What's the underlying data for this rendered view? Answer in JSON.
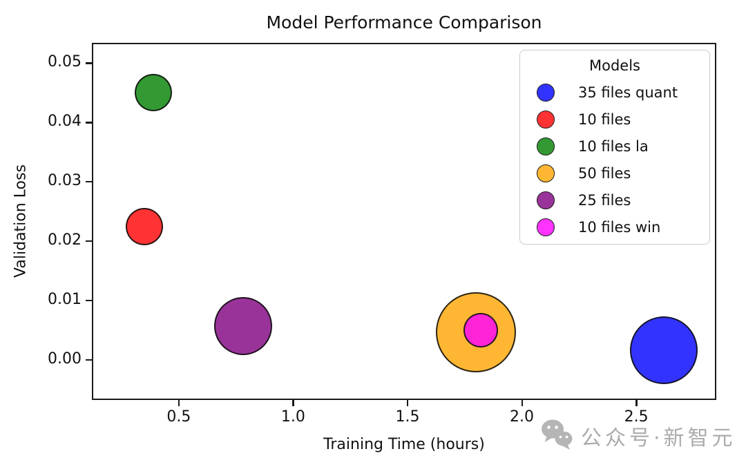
{
  "chart_data": {
    "type": "scatter",
    "title": "Model Performance Comparison",
    "xlabel": "Training Time (hours)",
    "ylabel": "Validation Loss",
    "legend_title": "Models",
    "legend_position": "upper right",
    "grid": false,
    "xlim": [
      0.12,
      2.85
    ],
    "ylim": [
      -0.0068,
      0.0534
    ],
    "xticks": [
      {
        "value": 0.5,
        "label": "0.5"
      },
      {
        "value": 1.0,
        "label": "1.0"
      },
      {
        "value": 1.5,
        "label": "1.5"
      },
      {
        "value": 2.0,
        "label": "2.0"
      },
      {
        "value": 2.5,
        "label": "2.5"
      }
    ],
    "yticks": [
      {
        "value": 0.0,
        "label": "0.00"
      },
      {
        "value": 0.01,
        "label": "0.01"
      },
      {
        "value": 0.02,
        "label": "0.02"
      },
      {
        "value": 0.03,
        "label": "0.03"
      },
      {
        "value": 0.04,
        "label": "0.04"
      },
      {
        "value": 0.05,
        "label": "0.05"
      }
    ],
    "series": [
      {
        "name": "35 files quant",
        "color": "#0000ff",
        "x": 2.62,
        "y": 0.0016,
        "bubble_radius_px": 49
      },
      {
        "name": "10 files",
        "color": "#ff0000",
        "x": 0.35,
        "y": 0.0224,
        "bubble_radius_px": 27
      },
      {
        "name": "10 files la",
        "color": "#008000",
        "x": 0.39,
        "y": 0.045,
        "bubble_radius_px": 27
      },
      {
        "name": "50 files",
        "color": "#ffa500",
        "x": 1.8,
        "y": 0.0046,
        "bubble_radius_px": 58
      },
      {
        "name": "25 files",
        "color": "#800080",
        "x": 0.78,
        "y": 0.0057,
        "bubble_radius_px": 42
      },
      {
        "name": "10 files win",
        "color": "#ff00ff",
        "x": 1.82,
        "y": 0.005,
        "bubble_radius_px": 25
      }
    ],
    "marker_alpha": 0.8
  },
  "watermark": {
    "text": "公众号·新智元",
    "icon": "wechat-icon",
    "color": "#ababab"
  }
}
